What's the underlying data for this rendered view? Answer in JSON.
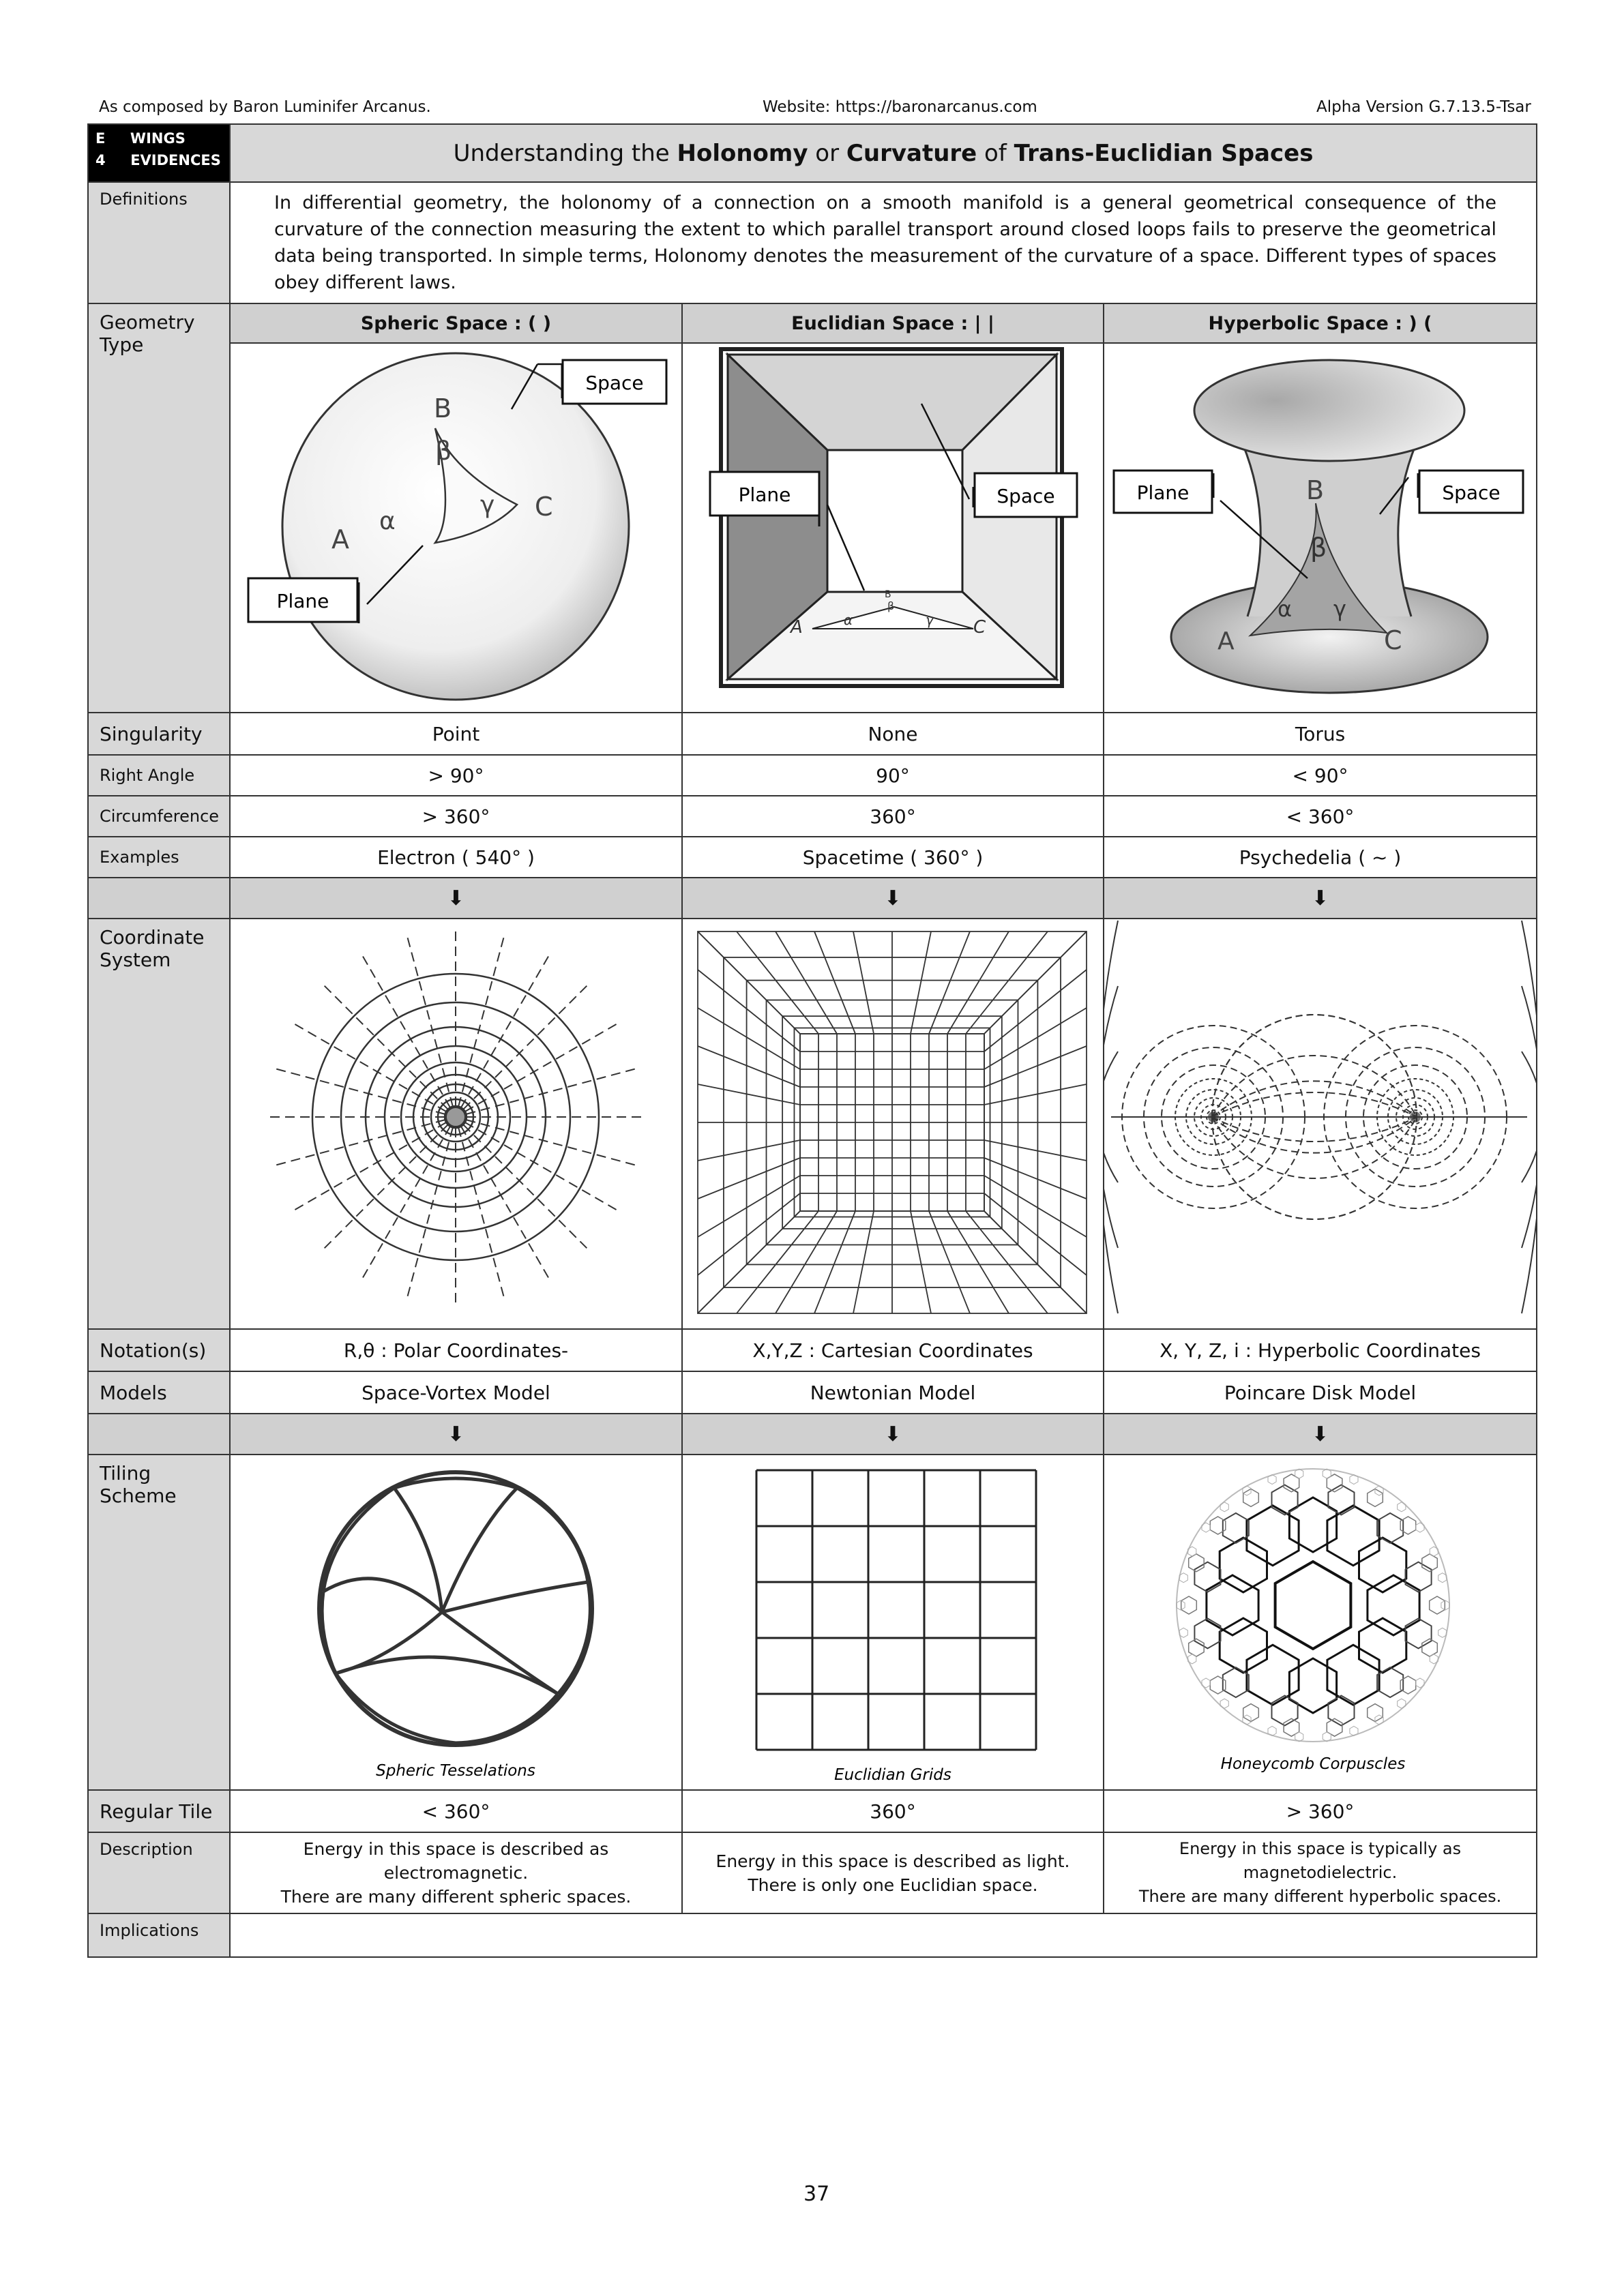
{
  "header": {
    "left": "As composed by Baron Luminifer Arcanus.",
    "center": "Website: https://baronarcanus.com",
    "right": "Alpha Version G.7.13.5-Tsar"
  },
  "section_tag": {
    "line1_num": "E",
    "line1_text": "WINGS",
    "line2_num": "4",
    "line2_text": "EVIDENCES"
  },
  "title": {
    "pre": "Understanding the ",
    "b1": "Holonomy",
    "mid1": " or ",
    "b2": "Curvature",
    "mid2": " of ",
    "b3": "Trans-Euclidian Spaces"
  },
  "definitions": {
    "label": "Definitions",
    "text": "In differential geometry, the holonomy of a connection on a smooth manifold is a general geometrical consequence of the curvature of the connection measuring the extent to which parallel transport around closed loops fails to preserve the geometrical data being transported. In simple terms, Holonomy denotes the measurement of the curvature of a space. Different types of spaces obey different laws."
  },
  "geometry_type": {
    "label": "Geometry Type",
    "columns": [
      "Spheric Space : ( )",
      "Euclidian Space : | |",
      "Hyperbolic Space : ) ("
    ],
    "callouts": {
      "space": "Space",
      "plane": "Plane"
    },
    "vertex_labels": {
      "a": "A",
      "b": "B",
      "c": "C",
      "alpha": "α",
      "beta": "β",
      "gamma": "γ"
    }
  },
  "rows1": [
    {
      "label": "Singularity",
      "values": [
        "Point",
        "None",
        "Torus"
      ]
    },
    {
      "label": "Right Angle",
      "values": [
        "> 90°",
        "90°",
        "< 90°"
      ]
    },
    {
      "label": "Circumference",
      "values": [
        "> 360°",
        "360°",
        "< 360°"
      ]
    },
    {
      "label": "Examples",
      "values": [
        "Electron ( 540° )",
        "Spacetime ( 360° )",
        "Psychedelia ( ~ )"
      ]
    }
  ],
  "arrow": "⬇",
  "coordinate_system": {
    "label": "Coordinate System"
  },
  "rows2": [
    {
      "label": "Notation(s)",
      "values": [
        "R,θ : Polar Coordinates-",
        "X,Y,Z : Cartesian Coordinates",
        "X, Y, Z, i : Hyperbolic Coordinates"
      ]
    },
    {
      "label": "Models",
      "values": [
        "Space-Vortex Model",
        "Newtonian Model",
        "Poincare Disk Model"
      ]
    }
  ],
  "tiling": {
    "label": "Tiling Scheme",
    "captions": [
      "Spheric Tesselations",
      "Euclidian Grids",
      "Honeycomb Corpuscles"
    ]
  },
  "regular_tile": {
    "label": "Regular Tile",
    "values": [
      "< 360°",
      "360°",
      "> 360°"
    ]
  },
  "description": {
    "label": "Description",
    "values": [
      [
        "Energy in this space is described as electromagnetic.",
        "There are many different spheric spaces."
      ],
      [
        "Energy in this space is described as light.",
        "There is only one Euclidian space."
      ],
      [
        "Energy in this space is typically as magnetodielectric.",
        "There are many different hyperbolic spaces."
      ]
    ]
  },
  "implications": {
    "label": "Implications"
  },
  "page_number": "37"
}
